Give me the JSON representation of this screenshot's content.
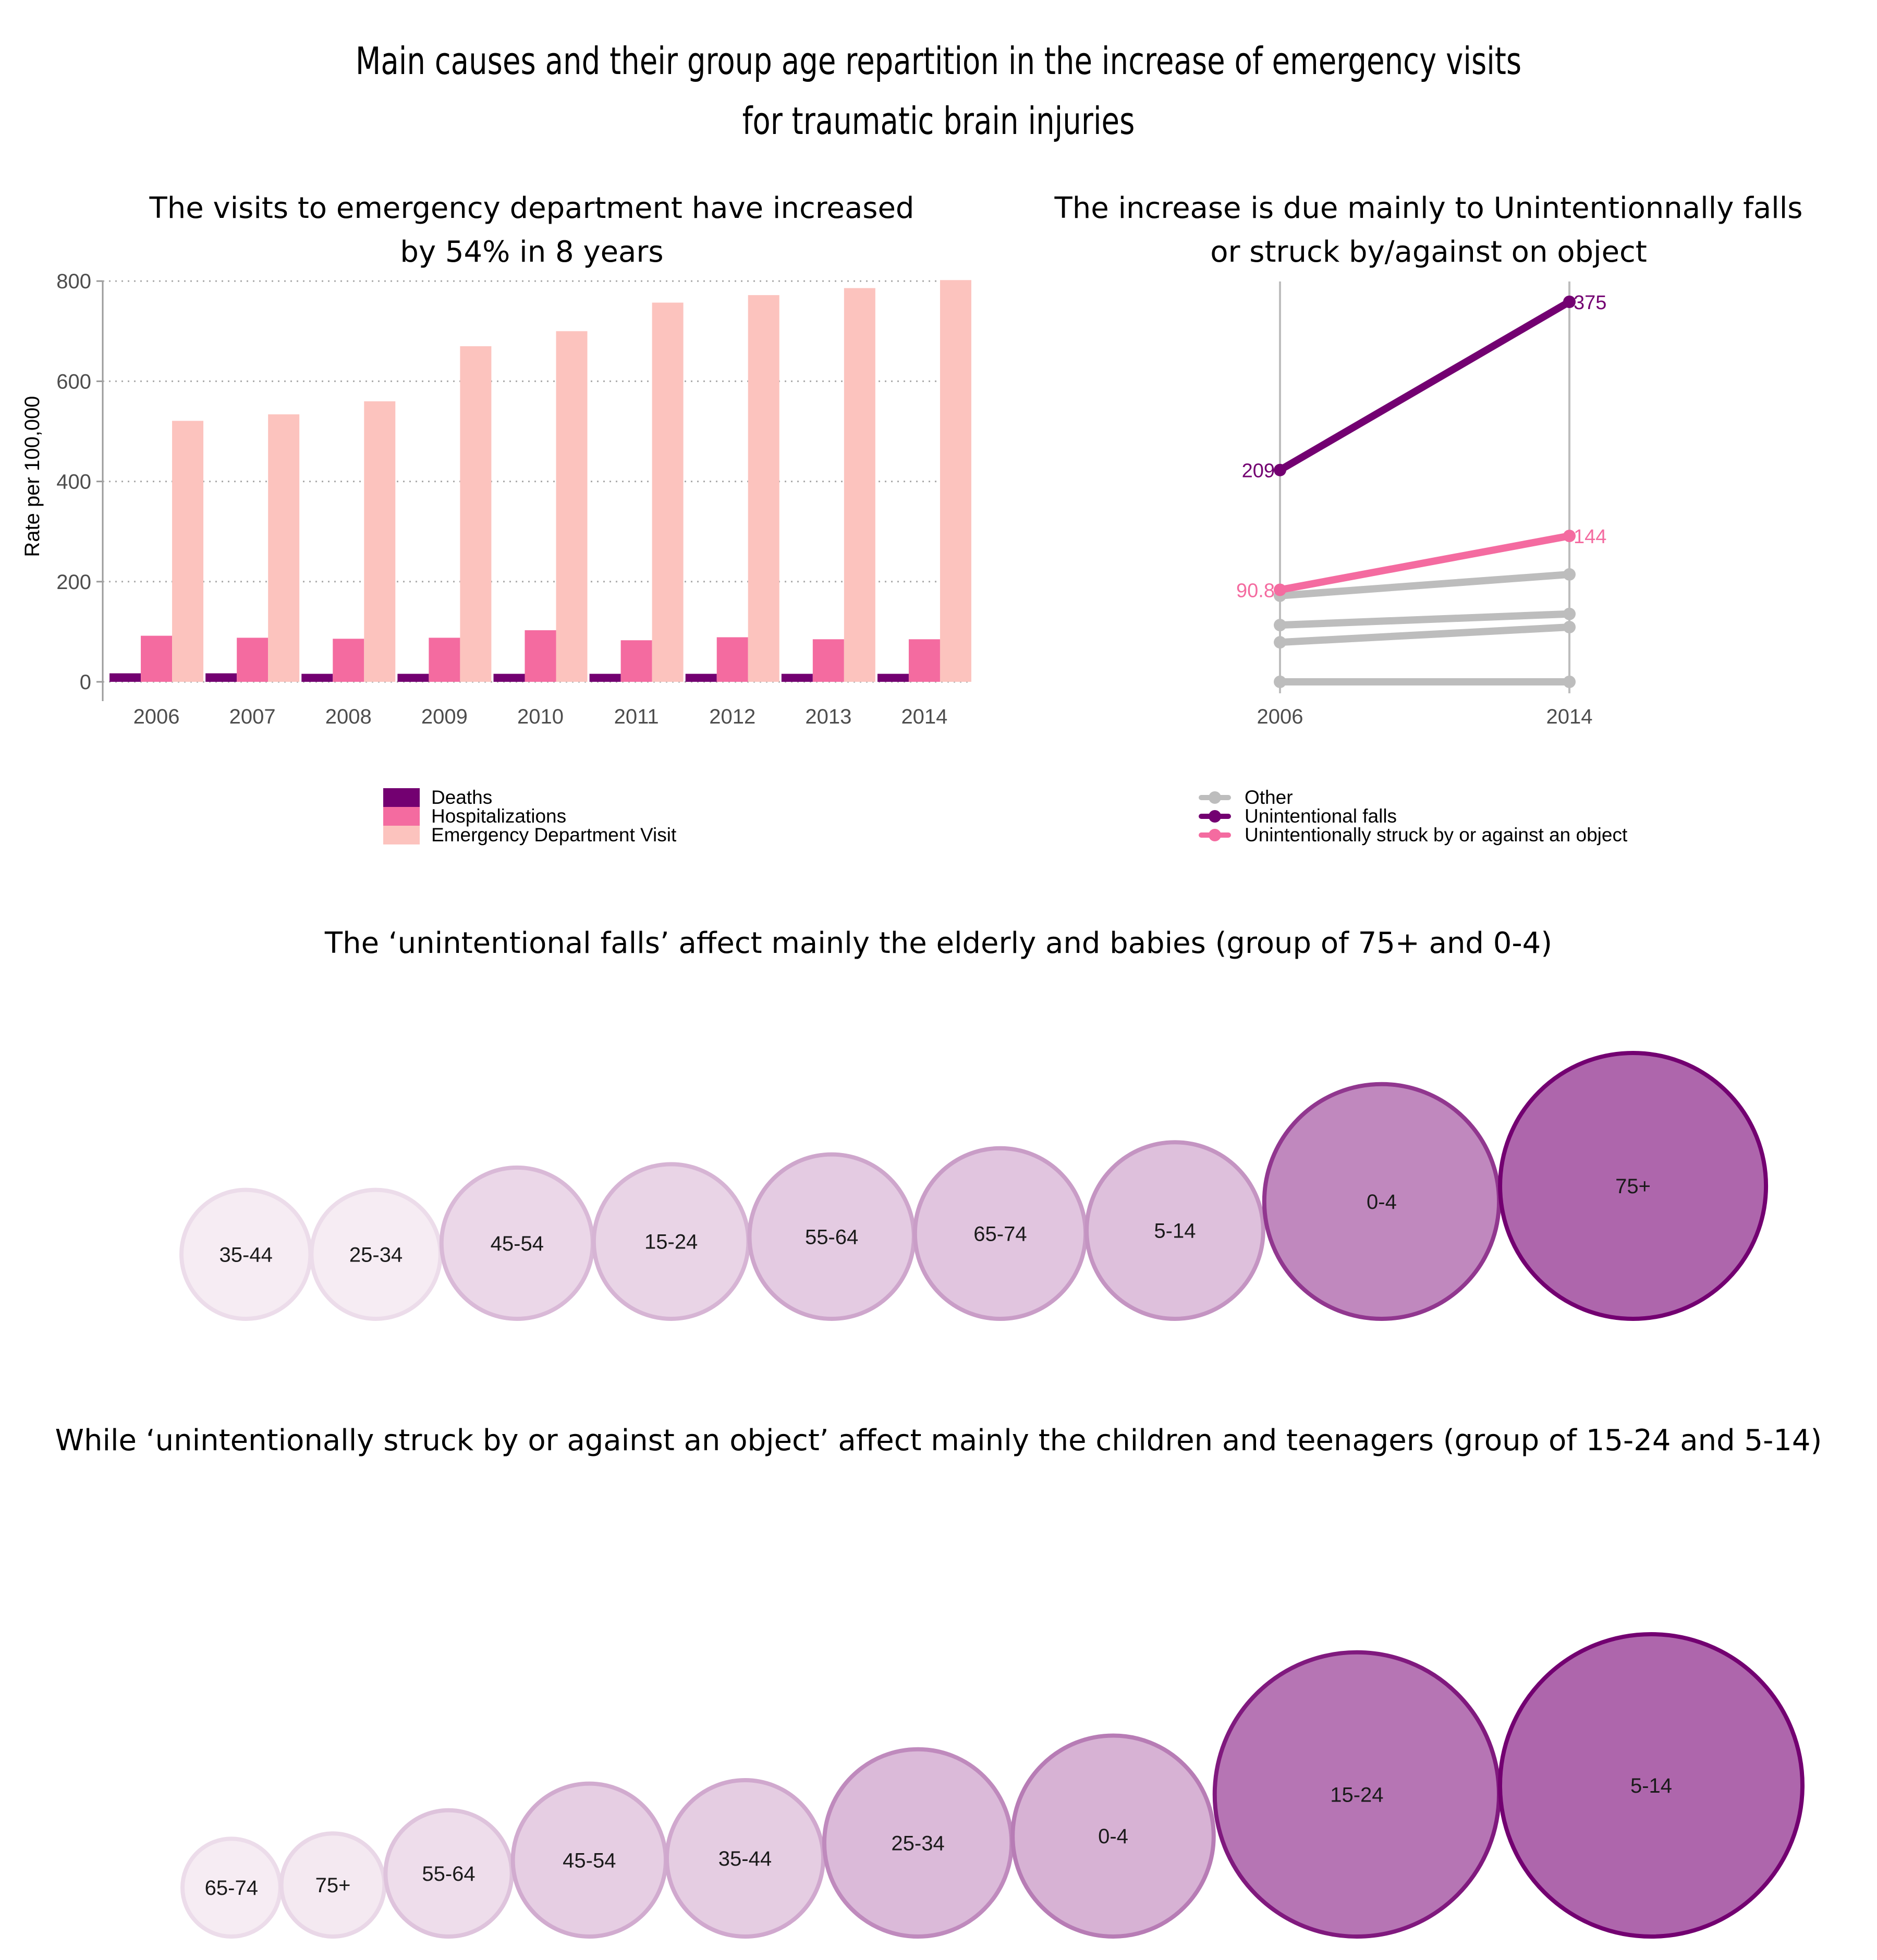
{
  "title": "Main causes and their group age repartition in the increase of emergency visits for traumatic brain injuries",
  "title_lines": [
    "Main causes and their group age repartition in the increase of emergency visits",
    "for traumatic brain injuries"
  ],
  "colors": {
    "deaths": "#730071",
    "hospitalizations": "#f46ba0",
    "ed_visit": "#fcc3be",
    "other": "#bdbdbd",
    "falls": "#730071",
    "struck": "#f46ba0"
  },
  "chart_data": [
    {
      "type": "bar",
      "title": "The visits to emergency department have increased by 54% in 8 years",
      "title_lines": [
        "The visits to emergency department have increased",
        "by 54% in 8 years"
      ],
      "ylabel": "Rate per 100,000",
      "ylim": [
        0,
        820
      ],
      "yticks": [
        "0",
        "200",
        "400",
        "600",
        "800"
      ],
      "categories": [
        "2006",
        "2007",
        "2008",
        "2009",
        "2010",
        "2011",
        "2012",
        "2013",
        "2014"
      ],
      "grid": "horizontal-dotted",
      "legend_position": "bottom",
      "series": [
        {
          "name": "Deaths",
          "color": "#730071",
          "values": [
            17,
            17,
            16,
            16,
            16,
            16,
            16,
            16,
            16
          ]
        },
        {
          "name": "Hospitalizations",
          "color": "#f46ba0",
          "values": [
            92,
            88,
            86,
            88,
            103,
            83,
            89,
            85,
            85
          ]
        },
        {
          "name": "Emergency Department Visit",
          "color": "#fcc3be",
          "values": [
            521,
            534,
            560,
            670,
            700,
            757,
            772,
            786,
            802
          ]
        }
      ]
    },
    {
      "type": "line",
      "title": "The increase is due mainly to Unintentionnally falls or struck by/against on object",
      "title_lines": [
        "The increase is due mainly to Unintentionnally falls",
        "or struck by/against on object"
      ],
      "x": [
        "2006",
        "2014"
      ],
      "ylim": [
        0,
        375
      ],
      "legend_position": "bottom",
      "series": [
        {
          "name": "Unintentional falls",
          "color": "#730071",
          "values": [
            209,
            375
          ],
          "labels": [
            "209",
            "375"
          ]
        },
        {
          "name": "Unintentionally struck by or against an object",
          "color": "#f46ba0",
          "values": [
            90.8,
            144
          ],
          "labels": [
            "90.8",
            "144"
          ]
        },
        {
          "name": "Other",
          "color": "#bdbdbd",
          "values": [
            85,
            106
          ]
        },
        {
          "name": "Other",
          "color": "#bdbdbd",
          "values": [
            56,
            67
          ]
        },
        {
          "name": "Other",
          "color": "#bdbdbd",
          "values": [
            39,
            54
          ]
        },
        {
          "name": "Other",
          "color": "#bdbdbd",
          "values": [
            0,
            0
          ]
        }
      ],
      "legend": [
        {
          "name": "Other",
          "color": "#bdbdbd"
        },
        {
          "name": "Unintentional falls",
          "color": "#730071"
        },
        {
          "name": "Unintentionally struck by or against an object",
          "color": "#f46ba0"
        }
      ]
    },
    {
      "type": "bubble",
      "title": "The ‘unintentional falls’ affect mainly the elderly and babies (group of 75+ and 0-4)",
      "groups": [
        "35-44",
        "25-34",
        "45-54",
        "15-24",
        "55-64",
        "65-74",
        "5-14",
        "0-4",
        "75+"
      ],
      "values": [
        16,
        16,
        22,
        23,
        26,
        28,
        30,
        53,
        68
      ]
    },
    {
      "type": "bubble",
      "title": "While ‘unintentionally struck by or against an object’ affect mainly the children and teenagers (group of 15-24 and 5-14)",
      "groups": [
        "65-74",
        "75+",
        "55-64",
        "45-54",
        "35-44",
        "25-34",
        "0-4",
        "15-24",
        "5-14"
      ],
      "values": [
        9,
        10,
        15,
        22,
        23,
        33,
        38,
        76,
        86
      ]
    }
  ]
}
